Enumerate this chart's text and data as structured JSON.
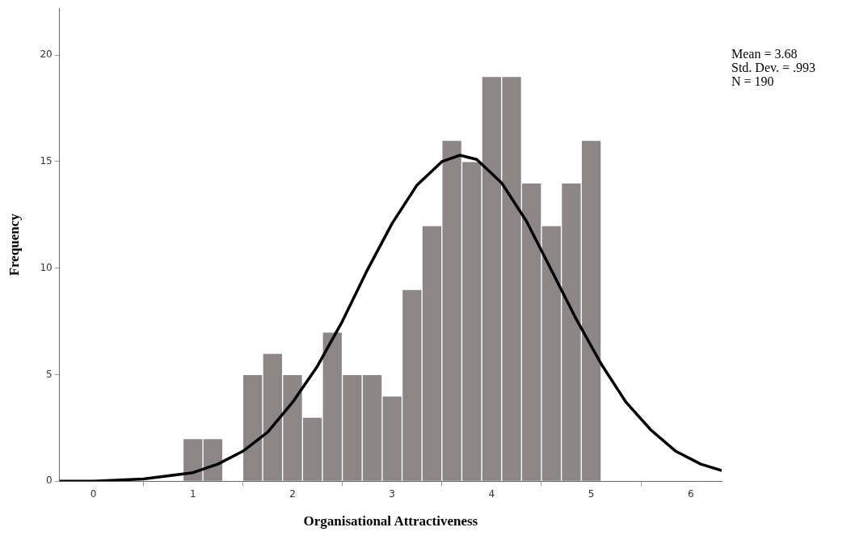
{
  "chart_data": {
    "type": "histogram",
    "xlabel": "Organisational Attractiveness",
    "ylabel": "Frequency",
    "bins": [
      0.9,
      1.1,
      1.3,
      1.5,
      1.7,
      1.9,
      2.1,
      2.3,
      2.5,
      2.7,
      2.9,
      3.1,
      3.3,
      3.5,
      3.7,
      3.9,
      4.1,
      4.3,
      4.5,
      4.7,
      4.9,
      5.1
    ],
    "values": [
      2,
      2,
      0,
      5,
      6,
      5,
      3,
      7,
      5,
      5,
      4,
      9,
      12,
      16,
      15,
      19,
      19,
      14,
      12,
      14,
      16
    ],
    "color": "#8c8786",
    "series": [
      {
        "type": "line",
        "color": "#000000",
        "x": [
          -0.34,
          0,
          0.5,
          1,
          1.25,
          1.5,
          1.75,
          2,
          2.25,
          2.5,
          2.75,
          3,
          3.25,
          3.5,
          3.68,
          3.85,
          4.1,
          4.35,
          4.6,
          4.85,
          5.1,
          5.35,
          5.6,
          5.85,
          6.1,
          6.31
        ],
        "values": [
          0,
          0,
          0.1,
          0.4,
          0.8,
          1.4,
          2.3,
          3.7,
          5.4,
          7.5,
          9.9,
          12.1,
          13.9,
          15,
          15.3,
          15.1,
          14,
          12.2,
          9.9,
          7.6,
          5.5,
          3.7,
          2.4,
          1.4,
          0.8,
          0.5
        ]
      }
    ],
    "xlim": [
      -0.34,
      6.31
    ],
    "xticks": [
      0,
      1,
      2,
      3,
      4,
      5,
      6
    ],
    "ylim": [
      0,
      22.2
    ],
    "yticks": [
      0,
      5,
      10,
      15,
      20
    ],
    "grid": false,
    "legend": false,
    "marker": "none",
    "line_style": "solid",
    "annotations": [
      "Mean = 3.68",
      "Std. Dev. = .993",
      "N = 190"
    ]
  }
}
